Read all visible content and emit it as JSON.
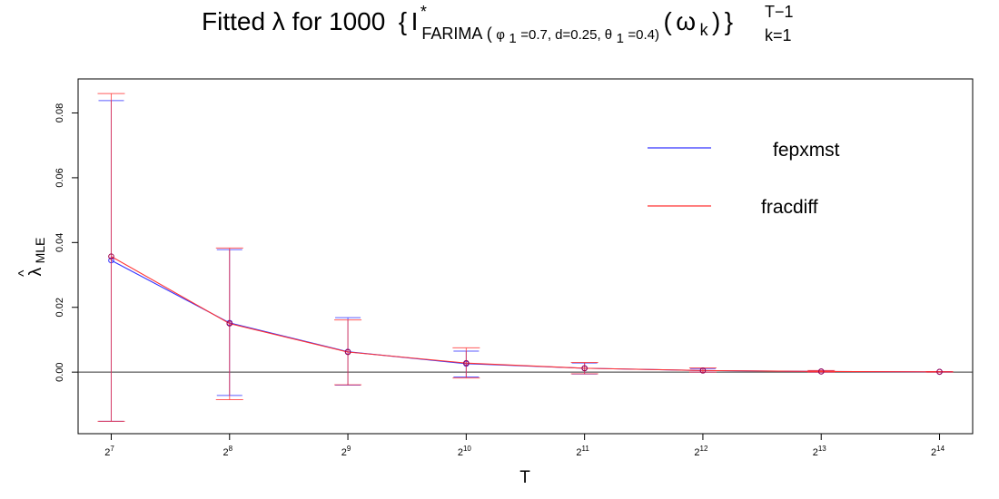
{
  "chart_data": {
    "type": "line",
    "title": {
      "lead": "Fitted λ for 1000",
      "brace_open": "{",
      "I": "I",
      "star": "*",
      "model": "FARIMA",
      "params_prefix": "(",
      "phi": "φ",
      "phi_sub": "1",
      "phi_val": "=0.7, d=0.25, ",
      "theta": "θ",
      "theta_sub": "1",
      "theta_val": "=0.4)",
      "omega_open": "(",
      "omega": "ω",
      "omega_sub": "k",
      "omega_close": ")",
      "brace_close": "}",
      "sup": "T−1",
      "sub": "k=1"
    },
    "xlabel": "T",
    "ylabel": {
      "hat": "^",
      "main": "λ",
      "sub": "MLE"
    },
    "x_log2": [
      7,
      8,
      9,
      10,
      11,
      12,
      13,
      14
    ],
    "x_tick_labels": [
      {
        "base": "2",
        "exp": "7"
      },
      {
        "base": "2",
        "exp": "8"
      },
      {
        "base": "2",
        "exp": "9"
      },
      {
        "base": "2",
        "exp": "10"
      },
      {
        "base": "2",
        "exp": "11"
      },
      {
        "base": "2",
        "exp": "12"
      },
      {
        "base": "2",
        "exp": "13"
      },
      {
        "base": "2",
        "exp": "14"
      }
    ],
    "y_ticks": [
      0.0,
      0.02,
      0.04,
      0.06,
      0.08
    ],
    "y_tick_labels": [
      "0.00",
      "0.02",
      "0.04",
      "0.06",
      "0.08"
    ],
    "ylim": [
      -0.019,
      0.0905
    ],
    "xlim": [
      6.72,
      14.28
    ],
    "reference_line_y": 0,
    "series": [
      {
        "name": "fepxmst",
        "color": "#3333ff",
        "values": [
          0.0345,
          0.0152,
          0.0063,
          0.0026,
          0.0012,
          0.0005,
          0.0002,
          0.0001
        ],
        "lower": [
          -0.0152,
          -0.0072,
          -0.004,
          -0.0015,
          -0.0006,
          0.0,
          0.0,
          0.0
        ],
        "upper": [
          0.0838,
          0.0378,
          0.0168,
          0.0065,
          0.0028,
          0.0011,
          0.0004,
          0.0002
        ]
      },
      {
        "name": "fracdiff",
        "color": "#ff3333",
        "values": [
          0.0357,
          0.015,
          0.0062,
          0.0028,
          0.0012,
          0.0005,
          0.0002,
          0.0001
        ],
        "lower": [
          -0.0152,
          -0.0085,
          -0.0039,
          -0.0018,
          -0.0005,
          0.0,
          0.0,
          0.0
        ],
        "upper": [
          0.086,
          0.0383,
          0.0161,
          0.0075,
          0.003,
          0.0013,
          0.0005,
          0.0002
        ]
      }
    ],
    "point_color": "#a0004a",
    "legend_position": "top-right",
    "grid": false
  }
}
